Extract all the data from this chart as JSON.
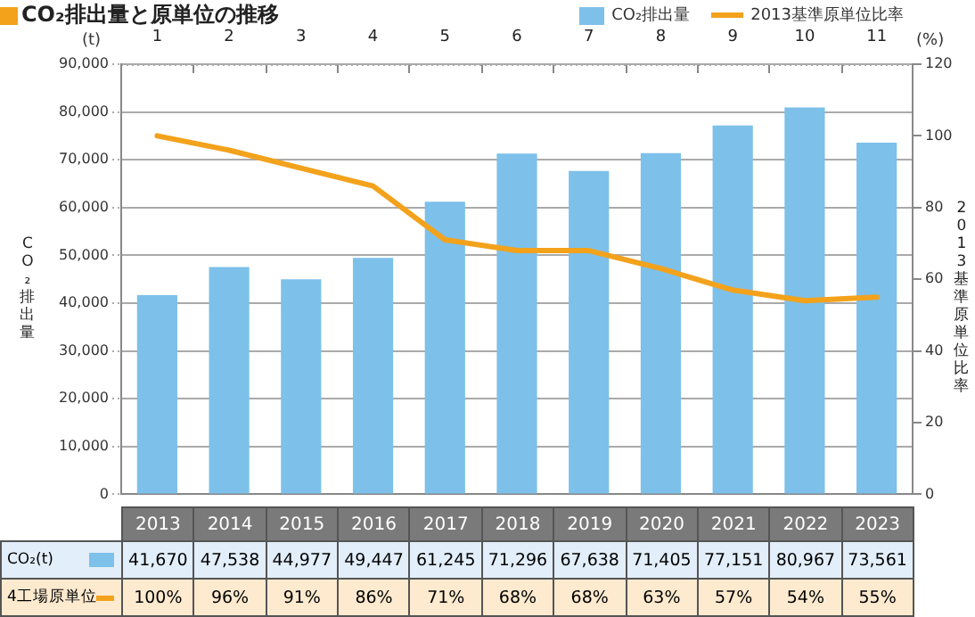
{
  "chart_data": {
    "type": "bar",
    "title": "CO₂排出量と原単位の推移",
    "categories": [
      "2013",
      "2014",
      "2015",
      "2016",
      "2017",
      "2018",
      "2019",
      "2020",
      "2021",
      "2022",
      "2023"
    ],
    "series": [
      {
        "name": "CO₂排出量",
        "type": "bar",
        "color": "#7dc0ea",
        "values": [
          41670,
          47538,
          44977,
          49447,
          61245,
          71296,
          67638,
          71405,
          77151,
          80967,
          73561
        ],
        "value_labels": [
          "41,670",
          "47,538",
          "44,977",
          "49,447",
          "61,245",
          "71,296",
          "67,638",
          "71,405",
          "77,151",
          "80,967",
          "73,561"
        ]
      },
      {
        "name": "2013基準原単位比率",
        "type": "line",
        "axis": "y2",
        "color": "#f3a21c",
        "values": [
          100,
          96,
          91,
          86,
          71,
          68,
          68,
          63,
          57,
          54,
          55
        ],
        "value_labels": [
          "100%",
          "96%",
          "91%",
          "86%",
          "71%",
          "68%",
          "68%",
          "63%",
          "57%",
          "54%",
          "55%"
        ]
      }
    ],
    "ylabel": "CO₂排出量",
    "y2label": "2013基準原単位比率",
    "ylim": [
      0,
      90000
    ],
    "yticks": [
      {
        "value": 0,
        "label": "0"
      },
      {
        "value": 10000,
        "label": "10,000"
      },
      {
        "value": 20000,
        "label": "20,000"
      },
      {
        "value": 30000,
        "label": "30,000"
      },
      {
        "value": 40000,
        "label": "40,000"
      },
      {
        "value": 50000,
        "label": "50,000"
      },
      {
        "value": 60000,
        "label": "60,000"
      },
      {
        "value": 70000,
        "label": "70,000"
      },
      {
        "value": 80000,
        "label": "80,000"
      },
      {
        "value": 90000,
        "label": "90,000"
      }
    ],
    "y2lim": [
      0,
      120
    ],
    "y2ticks": [
      0,
      20,
      40,
      60,
      80,
      100,
      120
    ],
    "x2lim": [
      0.5,
      11.5
    ],
    "x2ticks": [
      1,
      2,
      3,
      4,
      5,
      6,
      7,
      8,
      9,
      10,
      11
    ],
    "annotations": [
      "(t)",
      "(%)",
      "CO₂(t)",
      "4工場原単位"
    ],
    "grid": "y",
    "legend": "top right",
    "marker": "none",
    "line_style": "solid"
  }
}
